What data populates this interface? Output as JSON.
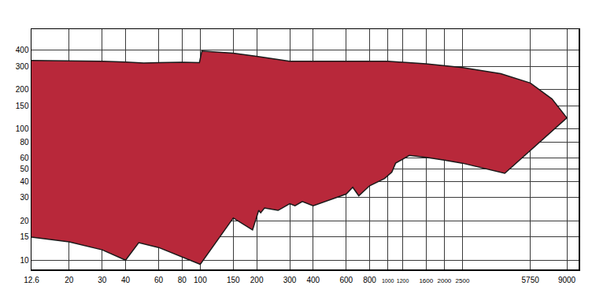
{
  "chart_data": {
    "type": "area",
    "x": [
      12.6,
      20,
      30,
      40,
      50,
      60,
      80,
      99,
      102,
      150,
      200,
      300,
      400,
      600,
      800,
      1000,
      1600,
      2500,
      4000,
      5750,
      7500,
      9000,
      4200,
      2500,
      2000,
      1600,
      1300,
      1100,
      1050,
      1000,
      960,
      800,
      700,
      650,
      600,
      400,
      350,
      320,
      300,
      260,
      220,
      210,
      205,
      190,
      150,
      100,
      60,
      47,
      40,
      30,
      20,
      12.6
    ],
    "values": [
      335,
      334,
      330,
      325,
      320,
      322,
      324,
      322,
      395,
      380,
      360,
      330,
      330,
      332,
      332,
      330,
      315,
      295,
      265,
      225,
      170,
      122,
      46,
      55,
      58,
      61,
      63,
      55,
      47,
      44,
      42,
      37,
      31,
      36,
      32,
      26,
      28,
      26,
      27,
      24,
      25,
      23,
      24,
      17,
      21,
      9.3,
      12.5,
      13.6,
      10,
      12,
      13.8,
      15
    ],
    "color": "#b8283a",
    "log": true,
    "grid": true,
    "xlim": [
      12.6,
      10400
    ],
    "ylim": [
      8.5,
      580
    ],
    "xticks": [
      12.6,
      20,
      30,
      40,
      60,
      80,
      100,
      150,
      200,
      300,
      400,
      600,
      800,
      1000,
      1200,
      1600,
      2000,
      2500,
      5750,
      9000
    ],
    "yticks": [
      10,
      15,
      20,
      30,
      40,
      50,
      60,
      80,
      100,
      150,
      200,
      300,
      400
    ]
  }
}
